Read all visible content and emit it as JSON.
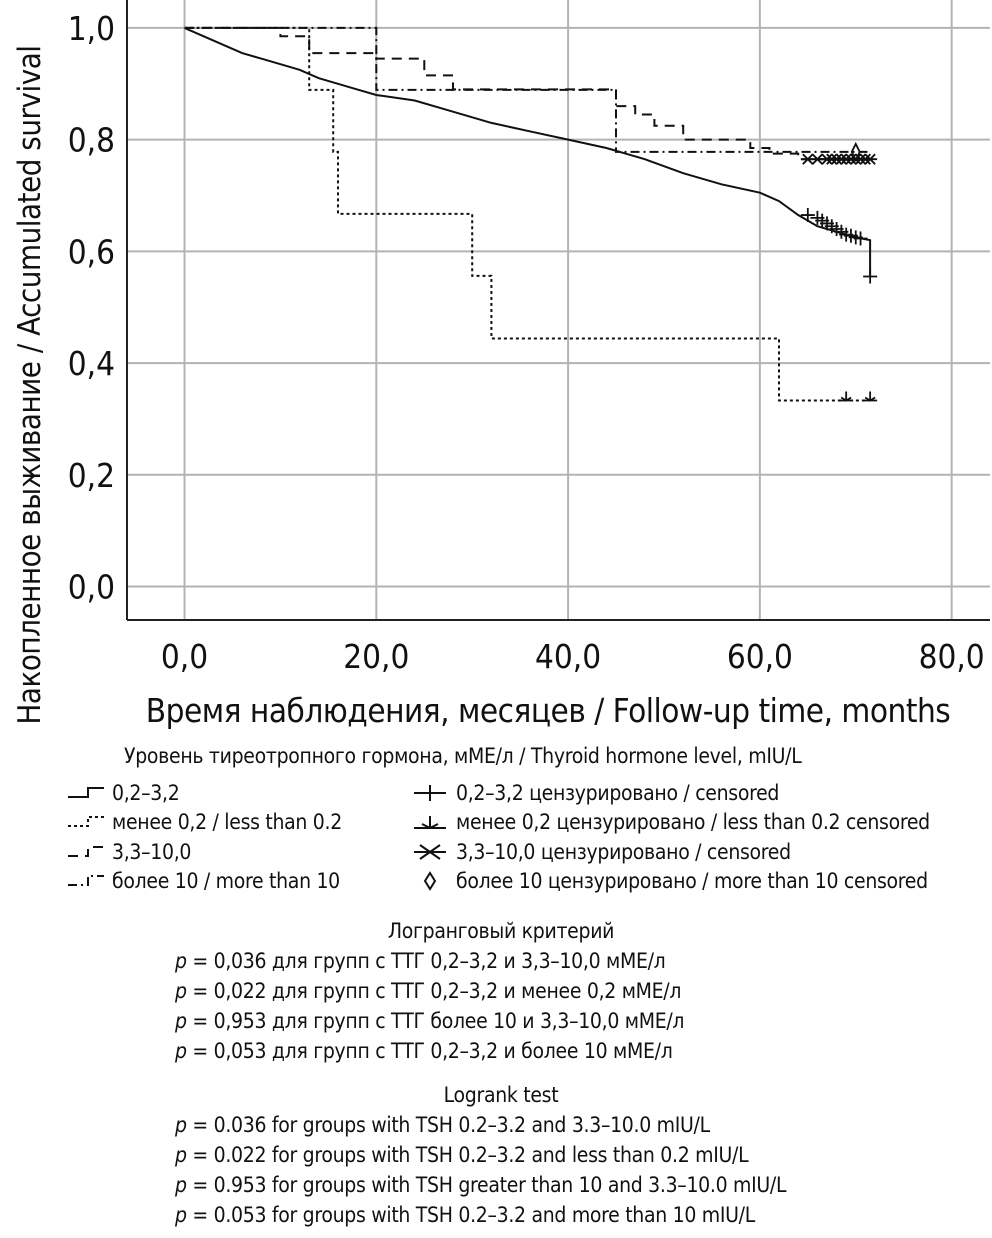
{
  "chart_data": {
    "type": "line",
    "subtype": "kaplan-meier survival curve",
    "ylabel": "Накопленное выживание / Accumulated survival",
    "xlabel": "Время наблюдения, месяцев / Follow-up time, months",
    "xlim": [
      -6,
      84
    ],
    "ylim": [
      -0.06,
      1.05
    ],
    "x_ticks": [
      0,
      20,
      40,
      60,
      80
    ],
    "x_tick_labels": [
      "0,0",
      "20,0",
      "40,0",
      "60,0",
      "80,0"
    ],
    "y_ticks": [
      0,
      0.2,
      0.4,
      0.6,
      0.8,
      1.0
    ],
    "y_tick_labels": [
      "0,0",
      "0,2",
      "0,4",
      "0,6",
      "0,8",
      "1,0"
    ],
    "grid": true,
    "legend_title": "Уровень тиреотропного гормона, мМЕ/л / Thyroid hormone level, mIU/L",
    "series": [
      {
        "name": "0,2–3,2",
        "dash": "",
        "x": [
          0,
          2,
          4,
          6,
          8,
          10,
          12,
          14,
          16,
          18,
          20,
          24,
          28,
          32,
          36,
          40,
          44,
          48,
          52,
          56,
          60,
          62,
          64,
          66,
          68,
          70,
          71.5,
          71.5
        ],
        "y": [
          1.0,
          0.985,
          0.97,
          0.955,
          0.945,
          0.935,
          0.925,
          0.91,
          0.9,
          0.89,
          0.88,
          0.87,
          0.85,
          0.83,
          0.815,
          0.8,
          0.785,
          0.765,
          0.74,
          0.72,
          0.705,
          0.69,
          0.665,
          0.645,
          0.635,
          0.625,
          0.62,
          0.555
        ],
        "censored_marker": "plus",
        "censored_x": [
          65,
          66,
          66.5,
          67,
          67.5,
          68,
          68.5,
          69,
          69.5,
          70,
          70.5,
          71.5
        ],
        "censored_y": [
          0.665,
          0.66,
          0.655,
          0.65,
          0.645,
          0.64,
          0.635,
          0.63,
          0.628,
          0.625,
          0.623,
          0.555
        ]
      },
      {
        "name": "менее 0,2 / less than 0.2",
        "dash": "3,3",
        "x": [
          0,
          13,
          13,
          15.5,
          15.5,
          16,
          16,
          30,
          30,
          32,
          32,
          62,
          62,
          71.5
        ],
        "y": [
          1.0,
          1.0,
          0.889,
          0.889,
          0.778,
          0.778,
          0.667,
          0.667,
          0.556,
          0.556,
          0.444,
          0.444,
          0.333,
          0.333
        ],
        "censored_marker": "tee",
        "censored_x": [
          69,
          71.5
        ],
        "censored_y": [
          0.333,
          0.333
        ]
      },
      {
        "name": "3,3–10,0",
        "dash": "10,7",
        "x": [
          0,
          10,
          10,
          13,
          13,
          20,
          20,
          25,
          25,
          28,
          28,
          45,
          45,
          47,
          47,
          49,
          49,
          52,
          52,
          59,
          59,
          61,
          61,
          64,
          64,
          71.5
        ],
        "y": [
          1.0,
          1.0,
          0.985,
          0.985,
          0.955,
          0.955,
          0.945,
          0.945,
          0.915,
          0.915,
          0.89,
          0.89,
          0.86,
          0.86,
          0.845,
          0.845,
          0.825,
          0.825,
          0.8,
          0.8,
          0.785,
          0.785,
          0.775,
          0.775,
          0.765,
          0.765
        ],
        "censored_marker": "asterisk",
        "censored_x": [
          65,
          66,
          67,
          67.5,
          68,
          68.5,
          69,
          69.5,
          70,
          70.5,
          71,
          71.5
        ],
        "censored_y": [
          0.765,
          0.765,
          0.765,
          0.765,
          0.765,
          0.765,
          0.765,
          0.765,
          0.765,
          0.765,
          0.765,
          0.765
        ]
      },
      {
        "name": "более 10 / more than 10",
        "dash": "9,4,2,4",
        "x": [
          0,
          20,
          20,
          45,
          45,
          71.5
        ],
        "y": [
          1.0,
          1.0,
          0.889,
          0.889,
          0.778,
          0.778
        ],
        "censored_marker": "diamond",
        "censored_x": [
          70
        ],
        "censored_y": [
          0.778
        ]
      }
    ]
  },
  "legend": {
    "title": "Уровень тиреотропного гормона, мМЕ/л / Thyroid hormone level, mIU/L",
    "left": [
      {
        "label": "0,2–3,2",
        "dash": ""
      },
      {
        "label": "менее 0,2 / less than 0.2",
        "dash": "3,3"
      },
      {
        "label": "3,3–10,0",
        "dash": "10,7"
      },
      {
        "label": "более 10 / more than 10",
        "dash": "9,4,2,4"
      }
    ],
    "right": [
      {
        "label": "0,2–3,2 цензурировано / censored",
        "marker": "plus"
      },
      {
        "label": "менее 0,2 цензурировано / less than 0.2 censored",
        "marker": "tee"
      },
      {
        "label": "3,3–10,0 цензурировано / censored",
        "marker": "asterisk"
      },
      {
        "label": "более 10 цензурировано / more than 10 censored",
        "marker": "diamond"
      }
    ]
  },
  "stats_ru": {
    "heading": "Логранговый критерий",
    "lines": [
      {
        "p": "p",
        "text": " = 0,036 для групп с ТТГ 0,2–3,2 и 3,3–10,0 мМЕ/л"
      },
      {
        "p": "p",
        "text": " = 0,022 для групп с ТТГ 0,2–3,2 и менее 0,2 мМЕ/л"
      },
      {
        "p": "p",
        "text": " = 0,953 для групп с ТТГ более 10 и 3,3–10,0 мМЕ/л"
      },
      {
        "p": "p",
        "text": " = 0,053 для групп с ТТГ 0,2–3,2 и более 10 мМЕ/л"
      }
    ]
  },
  "stats_en": {
    "heading": "Logrank test",
    "lines": [
      {
        "p": "p",
        "text": " = 0.036 for groups with TSH 0.2–3.2 and 3.3–10.0 mIU/L"
      },
      {
        "p": "p",
        "text": " = 0.022 for groups with TSH 0.2–3.2 and less than 0.2 mIU/L"
      },
      {
        "p": "p",
        "text": " = 0.953 for groups with TSH greater than 10 and 3.3–10.0 mIU/L"
      },
      {
        "p": "p",
        "text": " = 0.053 for groups with TSH 0.2–3.2 and more than 10 mIU/L"
      }
    ]
  }
}
